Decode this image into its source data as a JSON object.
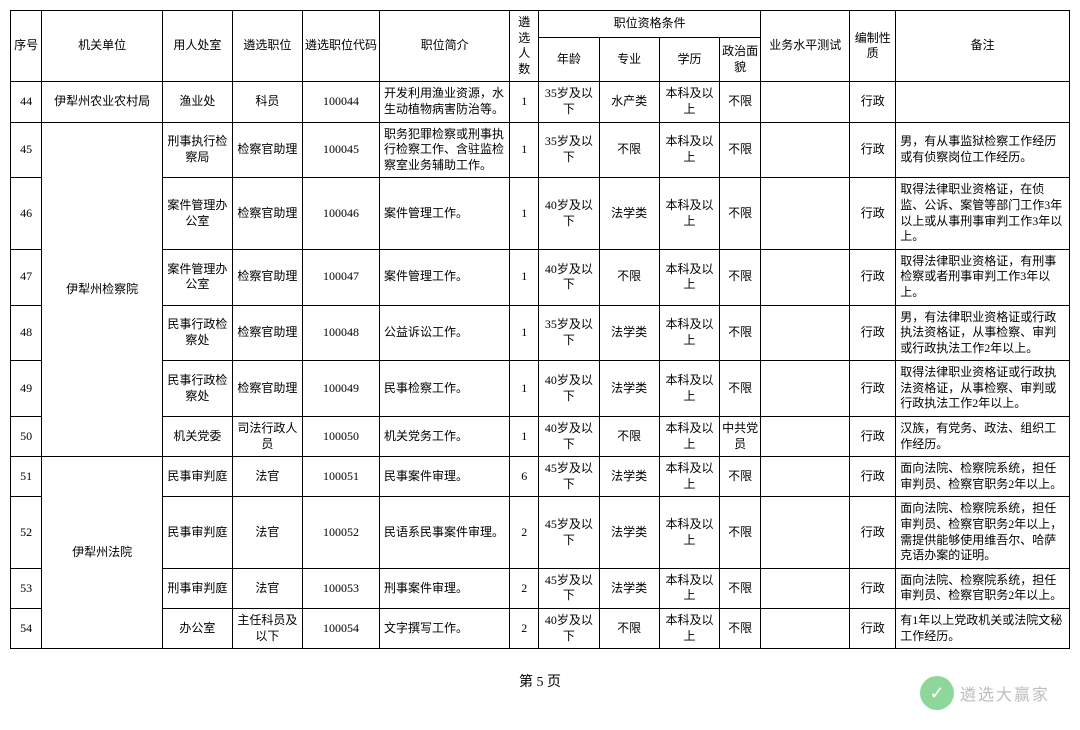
{
  "header": {
    "seq": "序号",
    "org": "机关单位",
    "dept": "用人处室",
    "pos": "遴选职位",
    "code": "遴选职位代码",
    "desc": "职位简介",
    "cnt": "遴选人数",
    "qual": "职位资格条件",
    "age": "年龄",
    "major": "专业",
    "edu": "学历",
    "pol": "政治面貌",
    "test": "业务水平测试",
    "type": "编制性质",
    "note": "备注"
  },
  "orgs": {
    "org1": "伊犁州农业农村局",
    "org2": "伊犁州检察院",
    "org3": "伊犁州法院"
  },
  "rows": [
    {
      "seq": "44",
      "dept": "渔业处",
      "pos": "科员",
      "code": "100044",
      "desc": "开发利用渔业资源，水生动植物病害防治等。",
      "cnt": "1",
      "age": "35岁及以下",
      "major": "水产类",
      "edu": "本科及以上",
      "pol": "不限",
      "test": "",
      "type": "行政",
      "note": ""
    },
    {
      "seq": "45",
      "dept": "刑事执行检察局",
      "pos": "检察官助理",
      "code": "100045",
      "desc": "职务犯罪检察或刑事执行检察工作、含驻监检察室业务辅助工作。",
      "cnt": "1",
      "age": "35岁及以下",
      "major": "不限",
      "edu": "本科及以上",
      "pol": "不限",
      "test": "",
      "type": "行政",
      "note": "男，有从事监狱检察工作经历或有侦察岗位工作经历。"
    },
    {
      "seq": "46",
      "dept": "案件管理办公室",
      "pos": "检察官助理",
      "code": "100046",
      "desc": "案件管理工作。",
      "cnt": "1",
      "age": "40岁及以下",
      "major": "法学类",
      "edu": "本科及以上",
      "pol": "不限",
      "test": "",
      "type": "行政",
      "note": "取得法律职业资格证，在侦监、公诉、案管等部门工作3年以上或从事刑事审判工作3年以上。"
    },
    {
      "seq": "47",
      "dept": "案件管理办公室",
      "pos": "检察官助理",
      "code": "100047",
      "desc": "案件管理工作。",
      "cnt": "1",
      "age": "40岁及以下",
      "major": "不限",
      "edu": "本科及以上",
      "pol": "不限",
      "test": "",
      "type": "行政",
      "note": "取得法律职业资格证，有刑事检察或者刑事审判工作3年以上。"
    },
    {
      "seq": "48",
      "dept": "民事行政检察处",
      "pos": "检察官助理",
      "code": "100048",
      "desc": "公益诉讼工作。",
      "cnt": "1",
      "age": "35岁及以下",
      "major": "法学类",
      "edu": "本科及以上",
      "pol": "不限",
      "test": "",
      "type": "行政",
      "note": "男，有法律职业资格证或行政执法资格证，从事检察、审判或行政执法工作2年以上。"
    },
    {
      "seq": "49",
      "dept": "民事行政检察处",
      "pos": "检察官助理",
      "code": "100049",
      "desc": "民事检察工作。",
      "cnt": "1",
      "age": "40岁及以下",
      "major": "法学类",
      "edu": "本科及以上",
      "pol": "不限",
      "test": "",
      "type": "行政",
      "note": "取得法律职业资格证或行政执法资格证，从事检察、审判或行政执法工作2年以上。"
    },
    {
      "seq": "50",
      "dept": "机关党委",
      "pos": "司法行政人员",
      "code": "100050",
      "desc": "机关党务工作。",
      "cnt": "1",
      "age": "40岁及以下",
      "major": "不限",
      "edu": "本科及以上",
      "pol": "中共党员",
      "test": "",
      "type": "行政",
      "note": "汉族，有党务、政法、组织工作经历。"
    },
    {
      "seq": "51",
      "dept": "民事审判庭",
      "pos": "法官",
      "code": "100051",
      "desc": "民事案件审理。",
      "cnt": "6",
      "age": "45岁及以下",
      "major": "法学类",
      "edu": "本科及以上",
      "pol": "不限",
      "test": "",
      "type": "行政",
      "note": "面向法院、检察院系统，担任审判员、检察官职务2年以上。"
    },
    {
      "seq": "52",
      "dept": "民事审判庭",
      "pos": "法官",
      "code": "100052",
      "desc": "民语系民事案件审理。",
      "cnt": "2",
      "age": "45岁及以下",
      "major": "法学类",
      "edu": "本科及以上",
      "pol": "不限",
      "test": "",
      "type": "行政",
      "note": "面向法院、检察院系统，担任审判员、检察官职务2年以上，需提供能够使用维吾尔、哈萨克语办案的证明。"
    },
    {
      "seq": "53",
      "dept": "刑事审判庭",
      "pos": "法官",
      "code": "100053",
      "desc": "刑事案件审理。",
      "cnt": "2",
      "age": "45岁及以下",
      "major": "法学类",
      "edu": "本科及以上",
      "pol": "不限",
      "test": "",
      "type": "行政",
      "note": "面向法院、检察院系统，担任审判员、检察官职务2年以上。"
    },
    {
      "seq": "54",
      "dept": "办公室",
      "pos": "主任科员及以下",
      "code": "100054",
      "desc": "文字撰写工作。",
      "cnt": "2",
      "age": "40岁及以下",
      "major": "不限",
      "edu": "本科及以上",
      "pol": "不限",
      "test": "",
      "type": "行政",
      "note": "有1年以上党政机关或法院文秘工作经历。"
    }
  ],
  "pageNum": "第 5 页",
  "watermark": {
    "icon": "✓",
    "text": "遴选大赢家"
  }
}
